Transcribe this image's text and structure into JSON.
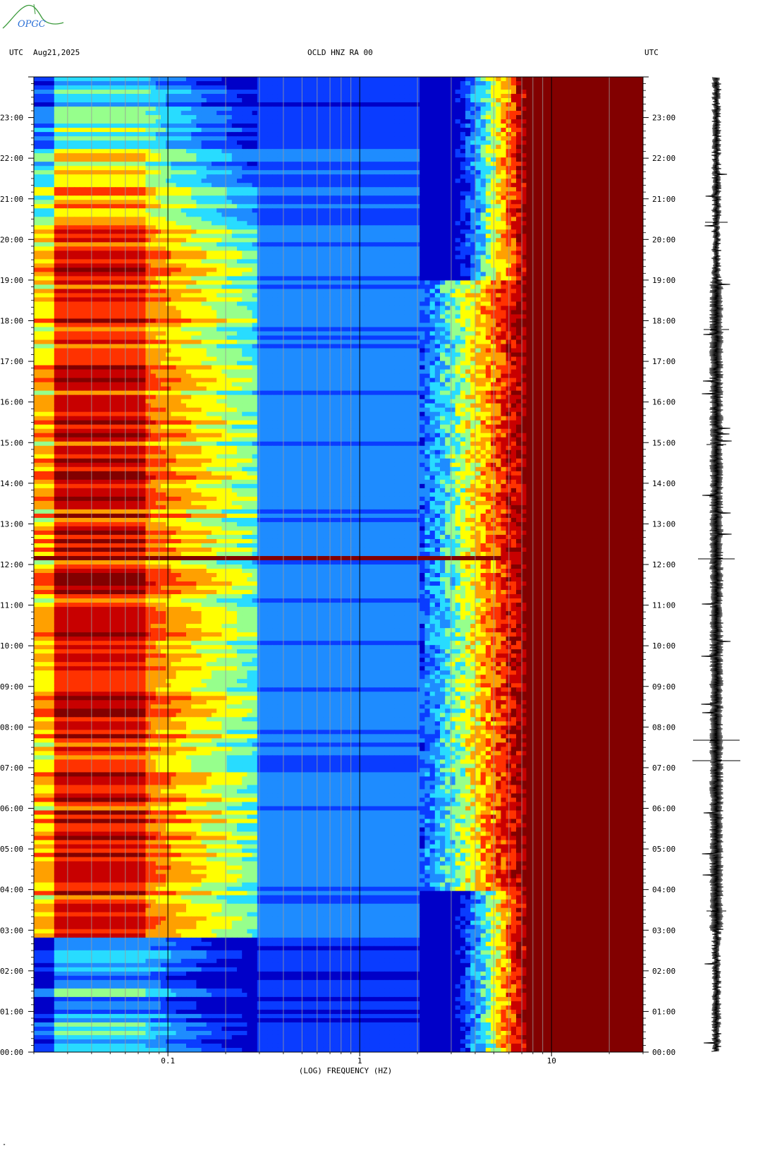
{
  "header": {
    "left_tz": "UTC",
    "date": "Aug21,2025",
    "station": "OCLD HNZ RA 00",
    "right_tz": "UTC"
  },
  "logo": {
    "text": "OPGC"
  },
  "footer_mark": "\"",
  "chart_data": {
    "type": "heatmap",
    "title": "OCLD HNZ RA 00",
    "xlabel": "(LOG) FREQUENCY (HZ)",
    "ylabel": "UTC",
    "x_scale": "log",
    "x_range_hz": [
      0.02,
      30
    ],
    "x_tick_labels": [
      {
        "value": 0.1,
        "label": "0.1"
      },
      {
        "value": 1,
        "label": "1"
      },
      {
        "value": 10,
        "label": "10"
      }
    ],
    "y_range_hours": [
      0,
      24
    ],
    "y_tick_labels": [
      "00:00",
      "01:00",
      "02:00",
      "03:00",
      "04:00",
      "05:00",
      "06:00",
      "07:00",
      "08:00",
      "09:00",
      "10:00",
      "11:00",
      "12:00",
      "13:00",
      "14:00",
      "15:00",
      "16:00",
      "17:00",
      "18:00",
      "19:00",
      "20:00",
      "21:00",
      "22:00",
      "23:00"
    ],
    "colormap": [
      "#0000c8",
      "#0a3cff",
      "#1e8cff",
      "#28dcff",
      "#96ff8c",
      "#ffff00",
      "#ffa000",
      "#ff3200",
      "#c80000",
      "#820000"
    ],
    "features": [
      {
        "description_hz": 10,
        "from_hour": 0,
        "to_hour": 24,
        "note": "saturated above ~8 Hz"
      },
      {
        "event_hour": 12.15,
        "note": "horizontal broadband line"
      }
    ],
    "seismogram": {
      "present": true,
      "time_axis": "UTC"
    }
  }
}
